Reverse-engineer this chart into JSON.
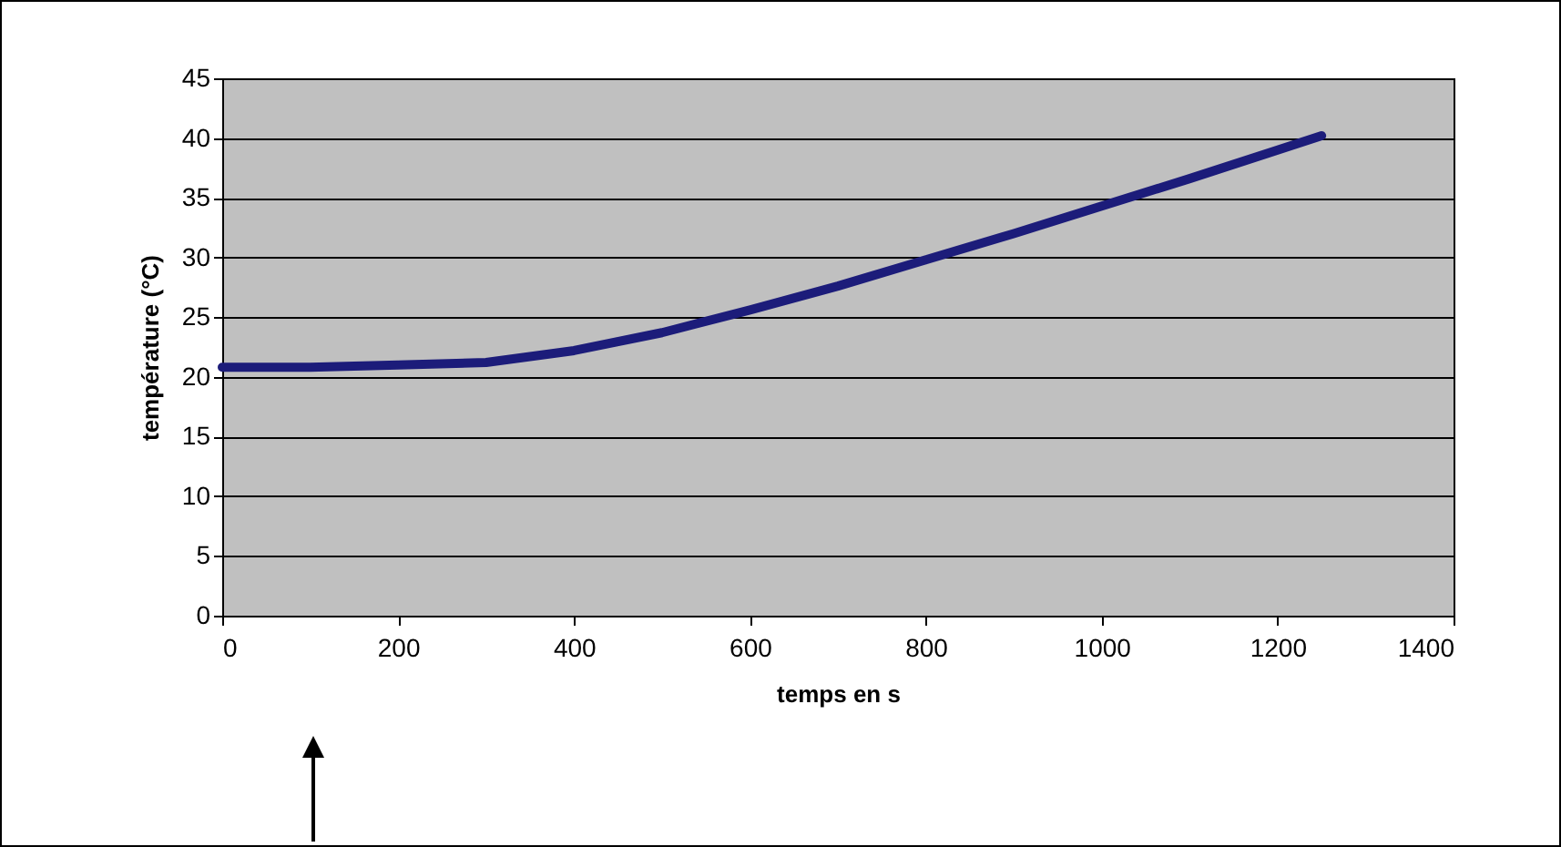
{
  "chart_data": {
    "type": "line",
    "xlabel": "temps en s",
    "ylabel": "température (°C)",
    "x": [
      0,
      100,
      200,
      300,
      400,
      500,
      600,
      700,
      800,
      900,
      1000,
      1100,
      1200,
      1250
    ],
    "series": [
      {
        "color": "#1c1c7a",
        "values": [
          20.8,
          20.8,
          21,
          21.2,
          22.2,
          23.7,
          25.6,
          27.6,
          29.8,
          32,
          34.3,
          36.6,
          39,
          40.2
        ]
      }
    ],
    "xlim": [
      0,
      1400
    ],
    "xticks": [
      0,
      200,
      400,
      600,
      800,
      1000,
      1200,
      1400
    ],
    "ylim": [
      0,
      45
    ],
    "yticks": [
      0,
      5,
      10,
      15,
      20,
      25,
      30,
      35,
      40,
      45
    ],
    "grid": "y",
    "marker": "none",
    "line_style": "solid"
  }
}
